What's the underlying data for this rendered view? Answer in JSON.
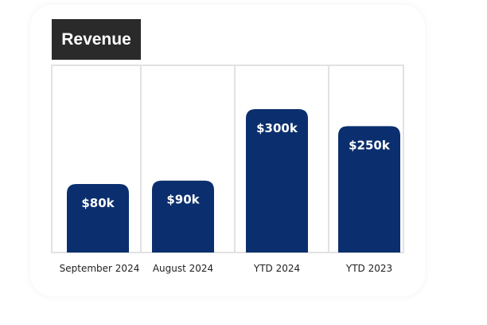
{
  "chart_data": {
    "type": "bar",
    "title": "Revenue",
    "categories": [
      "September 2024",
      "August 2024",
      "YTD 2024",
      "YTD 2023"
    ],
    "values": [
      80,
      90,
      300,
      250
    ],
    "value_labels": [
      "$80k",
      "$90k",
      "$300k",
      "$250k"
    ],
    "value_unit": "k USD",
    "bar_color": "#0b2f6e",
    "grid": true
  }
}
